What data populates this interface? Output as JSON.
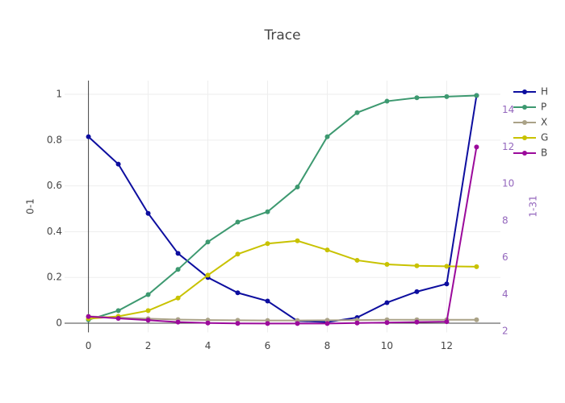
{
  "chart_data": {
    "type": "line",
    "title": "Trace",
    "y_label": "0-1",
    "y2_label": "1-31",
    "x": [
      0,
      1,
      2,
      3,
      4,
      5,
      6,
      7,
      8,
      9,
      10,
      11,
      12,
      13
    ],
    "xlim": [
      -0.8,
      13.8
    ],
    "xticks": [
      0,
      2,
      4,
      6,
      8,
      10,
      12
    ],
    "ylim": [
      -0.04,
      1.06
    ],
    "yticks": [
      0,
      0.2,
      0.4,
      0.6,
      0.8,
      1
    ],
    "y2lim": [
      1.94,
      15.6
    ],
    "y2ticks": [
      2,
      4,
      6,
      8,
      10,
      12,
      14
    ],
    "y2_color": "#9467bd",
    "grid": true,
    "legend": "right",
    "series": [
      {
        "name": "H",
        "color": "#0d0e9f",
        "values": [
          0.815,
          0.695,
          0.48,
          0.305,
          0.2,
          0.133,
          0.097,
          0.01,
          0.005,
          0.025,
          0.09,
          0.138,
          0.172,
          0.995
        ]
      },
      {
        "name": "P",
        "color": "#3d9970",
        "values": [
          0.015,
          0.055,
          0.125,
          0.235,
          0.355,
          0.442,
          0.487,
          0.595,
          0.815,
          0.92,
          0.97,
          0.985,
          0.99,
          0.995
        ]
      },
      {
        "name": "X",
        "color": "#aaa287",
        "values": [
          0.03,
          0.025,
          0.02,
          0.016,
          0.014,
          0.013,
          0.012,
          0.012,
          0.013,
          0.014,
          0.015,
          0.015,
          0.015,
          0.015
        ]
      },
      {
        "name": "G",
        "color": "#c8c200",
        "values": [
          0.02,
          0.03,
          0.055,
          0.11,
          0.21,
          0.302,
          0.348,
          0.36,
          0.32,
          0.275,
          0.257,
          0.251,
          0.249,
          0.247
        ]
      },
      {
        "name": "B",
        "color": "#9b0a9b",
        "axis": "y2",
        "values": [
          2.8,
          2.7,
          2.6,
          2.5,
          2.45,
          2.43,
          2.42,
          2.42,
          2.42,
          2.45,
          2.47,
          2.5,
          2.52,
          12
        ]
      }
    ]
  }
}
